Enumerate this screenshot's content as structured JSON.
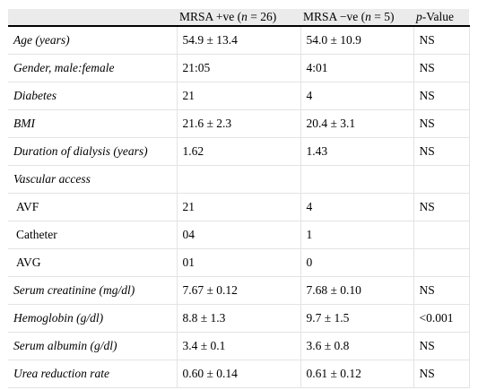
{
  "table": {
    "headers": [
      {
        "pre": "",
        "var": "",
        "post": ""
      },
      {
        "pre": "MRSA +ve (",
        "var": "n",
        "post": " = 26)"
      },
      {
        "pre": "MRSA −ve (",
        "var": "n",
        "post": " = 5)"
      },
      {
        "pre": "",
        "var": "p",
        "post": "-Value"
      }
    ],
    "rows": [
      {
        "label": "Age (years)",
        "pos": "54.9 ± 13.4",
        "neg": "54.0 ± 10.9",
        "p": "NS"
      },
      {
        "label": "Gender, male:female",
        "pos": "21:05",
        "neg": "4:01",
        "p": "NS"
      },
      {
        "label": "Diabetes",
        "pos": "21",
        "neg": "4",
        "p": "NS"
      },
      {
        "label": "BMI",
        "pos": "21.6 ± 2.3",
        "neg": "20.4 ± 3.1",
        "p": "NS"
      },
      {
        "label": "Duration of dialysis (years)",
        "pos": "1.62",
        "neg": "1.43",
        "p": "NS"
      },
      {
        "label": "Vascular access",
        "pos": "",
        "neg": "",
        "p": ""
      },
      {
        "label": "AVF",
        "pos": "21",
        "neg": "4",
        "p": "NS"
      },
      {
        "label": "Catheter",
        "pos": "04",
        "neg": "1",
        "p": ""
      },
      {
        "label": "AVG",
        "pos": "01",
        "neg": "0",
        "p": ""
      },
      {
        "label": "Serum creatinine (mg/dl)",
        "pos": "7.67 ± 0.12",
        "neg": "7.68 ± 0.10",
        "p": "NS"
      },
      {
        "label": "Hemoglobin (g/dl)",
        "pos": "8.8 ± 1.3",
        "neg": "9.7 ± 1.5",
        "p": "<0.001"
      },
      {
        "label": "Serum albumin (g/dl)",
        "pos": "3.4 ± 0.1",
        "neg": "3.6 ± 0.8",
        "p": "NS"
      },
      {
        "label": "Urea reduction rate",
        "pos": "0.60 ± 0.14",
        "neg": "0.61 ± 0.12",
        "p": "NS"
      }
    ]
  }
}
